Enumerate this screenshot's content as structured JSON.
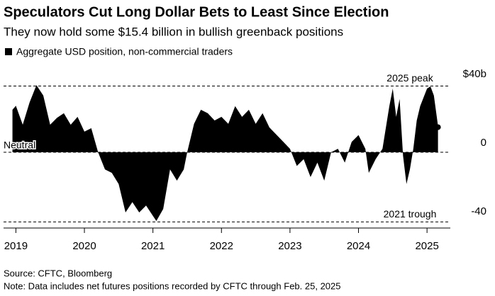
{
  "chart_data": {
    "type": "area",
    "title": "Speculators Cut Long Dollar Bets to Least Since Election",
    "subtitle": "They now hold some $15.4 billion in bullish greenback positions",
    "source": "Source: CFTC, Bloomberg",
    "note": "Note: Data includes net futures positions recorded by CFTC through Feb. 25, 2025",
    "baseline_label": "Neutral",
    "annotations": [
      {
        "label": "2025 peak",
        "value": 38.5
      },
      {
        "label": "2021 trough",
        "value": -40.5
      }
    ],
    "x": [
      2018.95,
      2019.0,
      2019.1,
      2019.2,
      2019.3,
      2019.4,
      2019.5,
      2019.6,
      2019.7,
      2019.8,
      2019.9,
      2020.0,
      2020.1,
      2020.2,
      2020.3,
      2020.4,
      2020.5,
      2020.6,
      2020.7,
      2020.8,
      2020.9,
      2021.0,
      2021.05,
      2021.15,
      2021.25,
      2021.35,
      2021.45,
      2021.5,
      2021.6,
      2021.7,
      2021.8,
      2021.9,
      2022.0,
      2022.1,
      2022.2,
      2022.3,
      2022.4,
      2022.5,
      2022.6,
      2022.7,
      2022.8,
      2022.9,
      2023.0,
      2023.1,
      2023.2,
      2023.3,
      2023.4,
      2023.5,
      2023.6,
      2023.7,
      2023.8,
      2023.9,
      2024.0,
      2024.1,
      2024.15,
      2024.25,
      2024.35,
      2024.45,
      2024.5,
      2024.55,
      2024.6,
      2024.65,
      2024.7,
      2024.75,
      2024.8,
      2024.85,
      2024.9,
      2025.0,
      2025.05,
      2025.1,
      2025.16
    ],
    "series": [
      {
        "name": "Aggregate USD position, non-commercial traders",
        "color": "#000000",
        "values": [
          24.7,
          27,
          16,
          29,
          39,
          33,
          16,
          20,
          22.7,
          16,
          20.6,
          12,
          14,
          0,
          -10,
          -12,
          -18.5,
          -35,
          -29,
          -35,
          -31,
          -37,
          -40,
          -33,
          -10,
          -16.5,
          -10,
          0,
          16.5,
          24.7,
          22.7,
          18.5,
          20.6,
          16.5,
          26.8,
          20.6,
          24.7,
          16.5,
          22.7,
          14.4,
          10.3,
          6.2,
          2,
          -8,
          -4,
          -14.4,
          -6,
          -16.5,
          0,
          2,
          -6,
          6,
          10,
          2,
          -12,
          -4,
          2,
          26.8,
          37,
          20.6,
          31,
          -2,
          -18.5,
          -10,
          2,
          18.5,
          26.8,
          37,
          38.3,
          33,
          15.4
        ]
      }
    ],
    "xlim": [
      2018.82,
      2025.34
    ],
    "xticks": [
      2019,
      2020,
      2021,
      2022,
      2023,
      2024,
      2025
    ],
    "ylim": [
      -42,
      42
    ],
    "yticks": [
      {
        "value": 40,
        "label": "$40b"
      },
      0,
      -40
    ],
    "legend": "top-left"
  }
}
